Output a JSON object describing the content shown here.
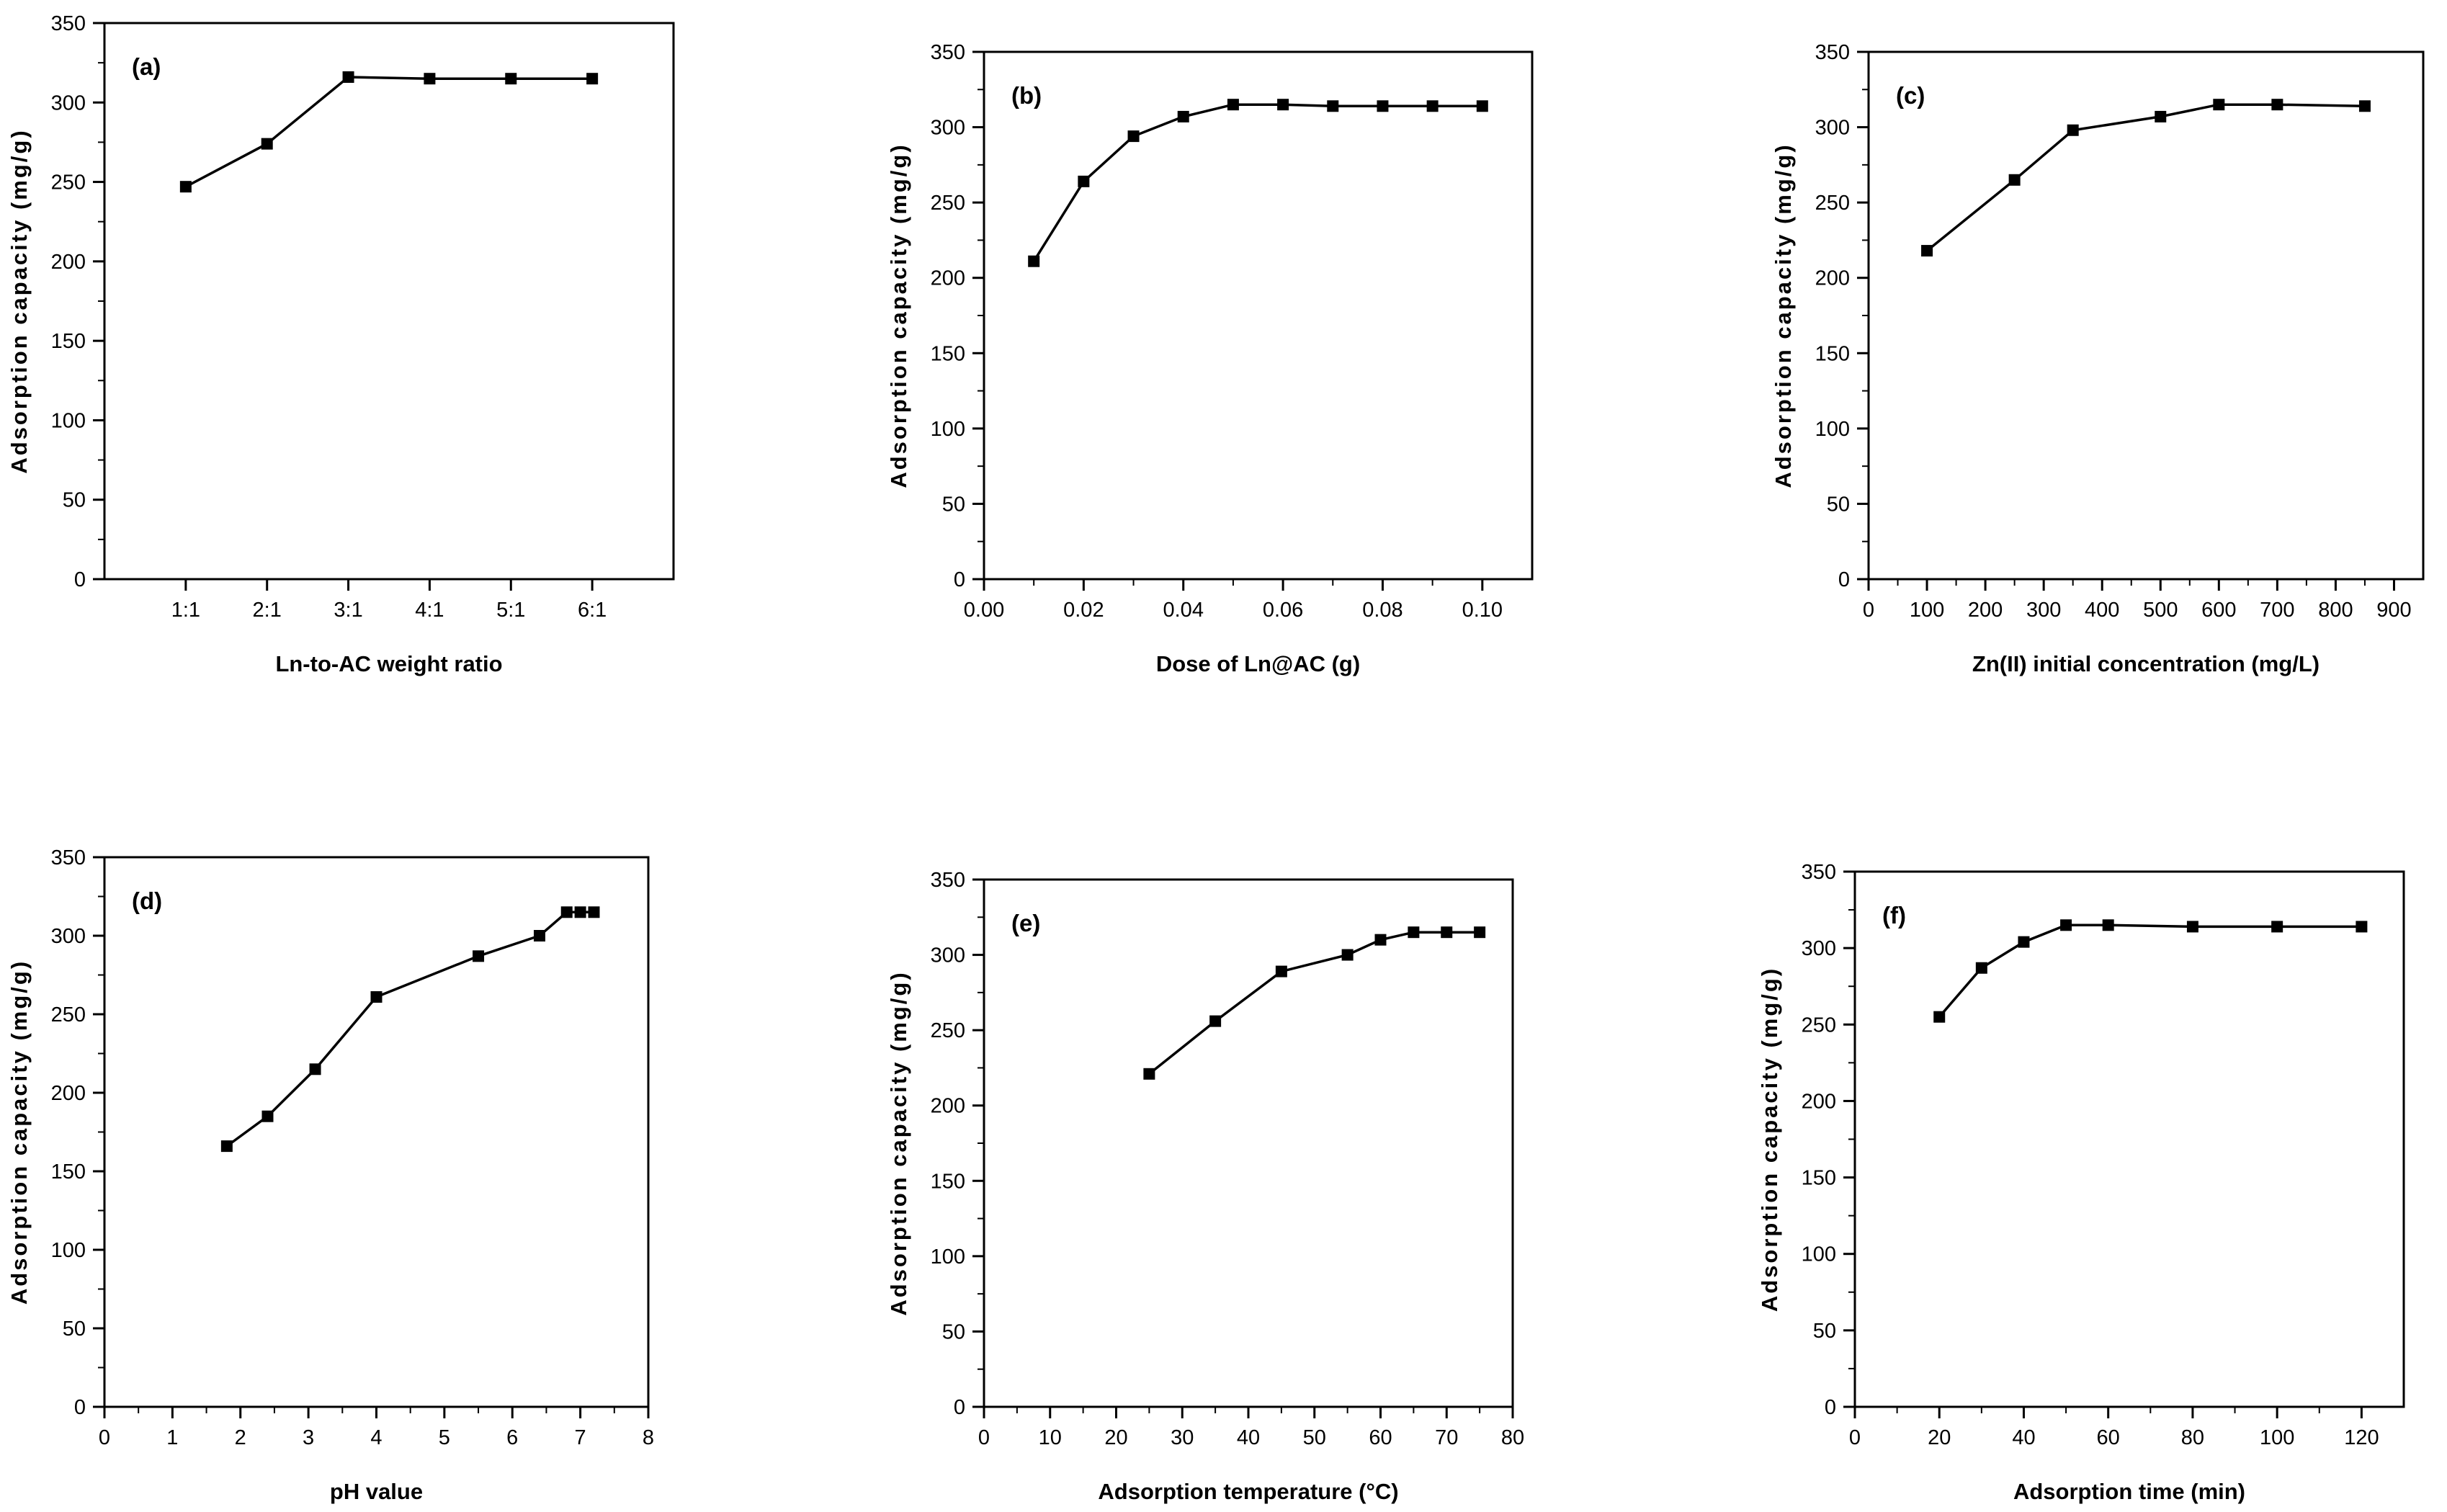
{
  "figure": {
    "y_axis_label": "Adsorption capacity (mg/g)",
    "panels": [
      {
        "panel_label": "(a)",
        "chart_data": {
          "type": "line",
          "xlabel": "Ln-to-AC weight ratio",
          "ylabel": "Adsorption capacity (mg/g)",
          "x_categorical": true,
          "categories": [
            "1:1",
            "2:1",
            "3:1",
            "4:1",
            "5:1",
            "6:1"
          ],
          "x": [
            1,
            2,
            3,
            4,
            5,
            6
          ],
          "y": [
            247,
            274,
            316,
            315,
            315,
            315
          ],
          "xlim": [
            0,
            7
          ],
          "xticks": [
            1,
            2,
            3,
            4,
            5,
            6
          ],
          "xtick_labels": [
            "1:1",
            "2:1",
            "3:1",
            "4:1",
            "5:1",
            "6:1"
          ],
          "ylim": [
            0,
            350
          ],
          "yticks": [
            0,
            50,
            100,
            150,
            200,
            250,
            300,
            350
          ],
          "marker": "square"
        }
      },
      {
        "panel_label": "(b)",
        "chart_data": {
          "type": "line",
          "xlabel": "Dose of Ln@AC (g)",
          "ylabel": "Adsorption capacity (mg/g)",
          "x": [
            0.01,
            0.02,
            0.03,
            0.04,
            0.05,
            0.06,
            0.07,
            0.08,
            0.09,
            0.1
          ],
          "y": [
            211,
            264,
            294,
            307,
            315,
            315,
            314,
            314,
            314,
            314
          ],
          "xlim": [
            0,
            0.11
          ],
          "xticks": [
            0,
            0.02,
            0.04,
            0.06,
            0.08,
            0.1
          ],
          "xtick_labels": [
            "0.00",
            "0.02",
            "0.04",
            "0.06",
            "0.08",
            "0.10"
          ],
          "ylim": [
            0,
            350
          ],
          "yticks": [
            0,
            50,
            100,
            150,
            200,
            250,
            300,
            350
          ],
          "marker": "square"
        }
      },
      {
        "panel_label": "(c)",
        "chart_data": {
          "type": "line",
          "xlabel": "Zn(II) initial concentration (mg/L)",
          "ylabel": "Adsorption capacity (mg/g)",
          "x": [
            100,
            250,
            350,
            500,
            600,
            700,
            850
          ],
          "y": [
            218,
            265,
            298,
            307,
            315,
            315,
            314
          ],
          "xlim": [
            0,
            950
          ],
          "xticks": [
            0,
            100,
            200,
            300,
            400,
            500,
            600,
            700,
            800,
            900
          ],
          "xtick_labels": [
            "0",
            "100",
            "200",
            "300",
            "400",
            "500",
            "600",
            "700",
            "800",
            "900"
          ],
          "ylim": [
            0,
            350
          ],
          "yticks": [
            0,
            50,
            100,
            150,
            200,
            250,
            300,
            350
          ],
          "marker": "square"
        }
      },
      {
        "panel_label": "(d)",
        "chart_data": {
          "type": "line",
          "xlabel": "pH value",
          "ylabel": "Adsorption capacity (mg/g)",
          "x": [
            1.8,
            2.4,
            3.1,
            4.0,
            5.5,
            6.4,
            6.8,
            7.0,
            7.2
          ],
          "y": [
            166,
            185,
            215,
            261,
            287,
            300,
            315,
            315,
            315
          ],
          "xlim": [
            0,
            8
          ],
          "xticks": [
            0,
            1,
            2,
            3,
            4,
            5,
            6,
            7,
            8
          ],
          "xtick_labels": [
            "0",
            "1",
            "2",
            "3",
            "4",
            "5",
            "6",
            "7",
            "8"
          ],
          "ylim": [
            0,
            350
          ],
          "yticks": [
            0,
            50,
            100,
            150,
            200,
            250,
            300,
            350
          ],
          "marker": "square"
        }
      },
      {
        "panel_label": "(e)",
        "chart_data": {
          "type": "line",
          "xlabel": "Adsorption temperature (°C)",
          "ylabel": "Adsorption capacity (mg/g)",
          "x": [
            25,
            35,
            45,
            55,
            60,
            65,
            70,
            75
          ],
          "y": [
            221,
            256,
            289,
            300,
            310,
            315,
            315,
            315
          ],
          "xlim": [
            0,
            80
          ],
          "xticks": [
            0,
            10,
            20,
            30,
            40,
            50,
            60,
            70,
            80
          ],
          "xtick_labels": [
            "0",
            "10",
            "20",
            "30",
            "40",
            "50",
            "60",
            "70",
            "80"
          ],
          "ylim": [
            0,
            350
          ],
          "yticks": [
            0,
            50,
            100,
            150,
            200,
            250,
            300,
            350
          ],
          "marker": "square"
        }
      },
      {
        "panel_label": "(f)",
        "chart_data": {
          "type": "line",
          "xlabel": "Adsorption time (min)",
          "ylabel": "Adsorption capacity (mg/g)",
          "x": [
            20,
            30,
            40,
            50,
            60,
            80,
            100,
            120
          ],
          "y": [
            255,
            287,
            304,
            315,
            315,
            314,
            314,
            314
          ],
          "xlim": [
            0,
            130
          ],
          "xticks": [
            0,
            20,
            40,
            60,
            80,
            100,
            120
          ],
          "xtick_labels": [
            "0",
            "20",
            "40",
            "60",
            "80",
            "100",
            "120"
          ],
          "ylim": [
            0,
            350
          ],
          "yticks": [
            0,
            50,
            100,
            150,
            200,
            250,
            300,
            350
          ],
          "marker": "square"
        }
      }
    ]
  },
  "colors": {
    "line": "#000000",
    "marker": "#000000",
    "axis": "#000000",
    "background": "#ffffff"
  }
}
